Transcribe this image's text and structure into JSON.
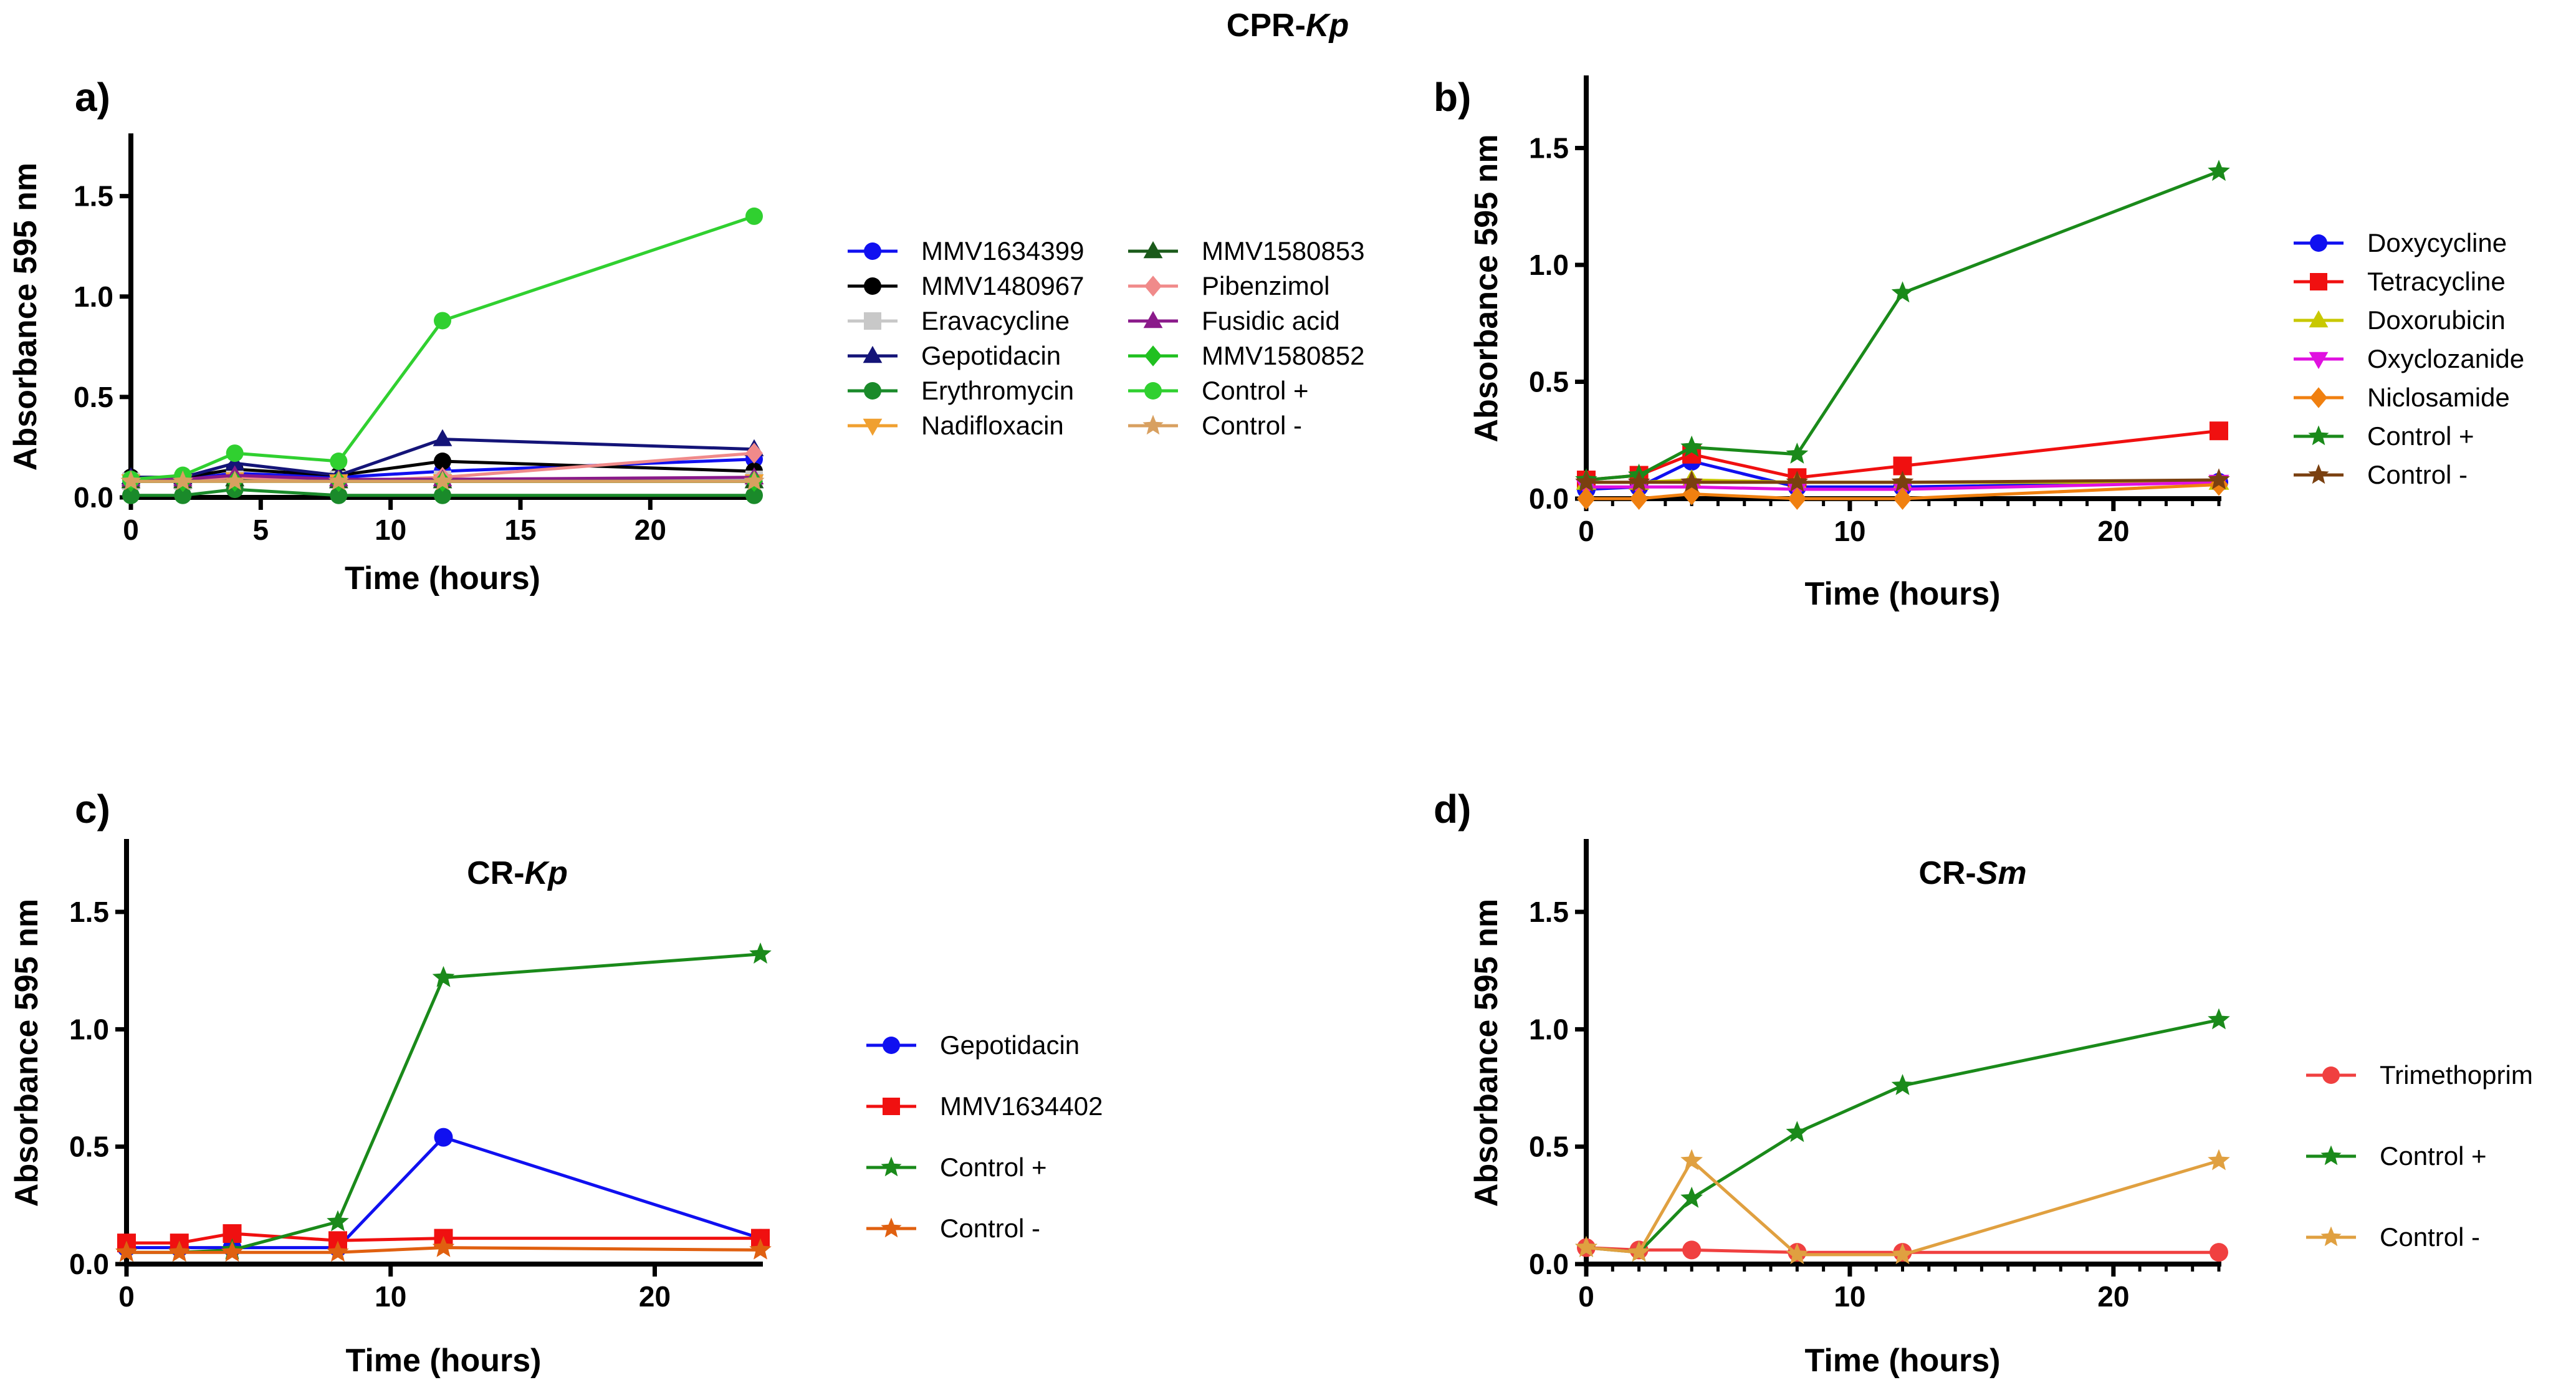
{
  "figure_title": "CPR-Kp",
  "figure_title_parts": {
    "prefix": "CPR-",
    "italic": "Kp"
  },
  "chart_data": [
    {
      "id": "a",
      "type": "line",
      "panel_label": "a)",
      "title": "",
      "xlabel": "Time (hours)",
      "ylabel": "Absorbance 595 nm",
      "xlim": [
        0,
        24
      ],
      "ylim": [
        0,
        1.8
      ],
      "xticks": [
        "0",
        "5",
        "10",
        "15",
        "20"
      ],
      "xtick_values": [
        0,
        5,
        10,
        15,
        20
      ],
      "yticks": [
        "0.0",
        "0.5",
        "1.0",
        "1.5"
      ],
      "ytick_values": [
        0,
        0.5,
        1.0,
        1.5
      ],
      "x": [
        0,
        2,
        4,
        8,
        12,
        24
      ],
      "series": [
        {
          "name": "MMV1634399",
          "color": "#1010f0",
          "marker": "circle",
          "values": [
            0.09,
            0.09,
            0.12,
            0.1,
            0.13,
            0.19
          ]
        },
        {
          "name": "MMV1480967",
          "color": "#000000",
          "marker": "circle",
          "values": [
            0.1,
            0.1,
            0.14,
            0.11,
            0.18,
            0.13
          ]
        },
        {
          "name": "Eravacycline",
          "color": "#c8c8c8",
          "marker": "square",
          "values": [
            0.08,
            0.08,
            0.09,
            0.09,
            0.09,
            0.09
          ]
        },
        {
          "name": "Gepotidacin",
          "color": "#141478",
          "marker": "triangle",
          "values": [
            0.1,
            0.1,
            0.17,
            0.11,
            0.29,
            0.24
          ]
        },
        {
          "name": "Erythromycin",
          "color": "#1a8a2a",
          "marker": "circle",
          "values": [
            0.01,
            0.01,
            0.04,
            0.01,
            0.01,
            0.01
          ]
        },
        {
          "name": "Nadifloxacin",
          "color": "#f0a030",
          "marker": "triangle-down",
          "values": [
            0.08,
            0.08,
            0.09,
            0.08,
            0.08,
            0.08
          ]
        },
        {
          "name": "MMV1580853",
          "color": "#1a5a1a",
          "marker": "triangle",
          "values": [
            0.08,
            0.08,
            0.09,
            0.08,
            0.08,
            0.08
          ]
        },
        {
          "name": "Pibenzimol",
          "color": "#f08a8a",
          "marker": "diamond",
          "values": [
            0.08,
            0.08,
            0.1,
            0.08,
            0.1,
            0.22
          ]
        },
        {
          "name": "Fusidic acid",
          "color": "#8a1a8a",
          "marker": "triangle",
          "values": [
            0.09,
            0.09,
            0.11,
            0.09,
            0.09,
            0.1
          ]
        },
        {
          "name": "MMV1580852",
          "color": "#20c020",
          "marker": "diamond",
          "values": [
            0.08,
            0.08,
            0.08,
            0.08,
            0.08,
            0.08
          ]
        },
        {
          "name": "Control +",
          "color": "#30d030",
          "marker": "circle",
          "values": [
            0.09,
            0.11,
            0.22,
            0.18,
            0.88,
            1.4
          ]
        },
        {
          "name": "Control -",
          "color": "#d8a060",
          "marker": "star",
          "values": [
            0.08,
            0.08,
            0.08,
            0.08,
            0.08,
            0.08
          ]
        }
      ],
      "legend": "right"
    },
    {
      "id": "b",
      "type": "line",
      "panel_label": "b)",
      "title": "",
      "xlabel": "Time (hours)",
      "ylabel": "Absorbance 595 nm",
      "xlim": [
        0,
        24
      ],
      "ylim": [
        0,
        1.8
      ],
      "xticks": [
        "0",
        "10",
        "20"
      ],
      "xtick_values": [
        0,
        10,
        20
      ],
      "yticks": [
        "0.0",
        "0.5",
        "1.0",
        "1.5"
      ],
      "ytick_values": [
        0,
        0.5,
        1.0,
        1.5
      ],
      "x": [
        0,
        2,
        4,
        8,
        12,
        24
      ],
      "series": [
        {
          "name": "Doxycycline",
          "color": "#1010f0",
          "marker": "circle",
          "values": [
            0.04,
            0.05,
            0.16,
            0.05,
            0.05,
            0.07
          ]
        },
        {
          "name": "Tetracycline",
          "color": "#f01010",
          "marker": "square",
          "values": [
            0.08,
            0.1,
            0.19,
            0.09,
            0.14,
            0.29
          ]
        },
        {
          "name": "Doxorubicin",
          "color": "#c8c800",
          "marker": "triangle",
          "values": [
            0.07,
            0.07,
            0.08,
            0.07,
            0.07,
            0.07
          ]
        },
        {
          "name": "Oxyclozanide",
          "color": "#e010e0",
          "marker": "triangle-down",
          "values": [
            0.05,
            0.05,
            0.05,
            0.04,
            0.04,
            0.07
          ]
        },
        {
          "name": "Niclosamide",
          "color": "#f08010",
          "marker": "diamond",
          "values": [
            0.0,
            0.0,
            0.02,
            0.0,
            0.0,
            0.06
          ]
        },
        {
          "name": "Control +",
          "color": "#1a8a1a",
          "marker": "star",
          "values": [
            0.08,
            0.1,
            0.22,
            0.19,
            0.88,
            1.4
          ]
        },
        {
          "name": "Control -",
          "color": "#7a4010",
          "marker": "star",
          "values": [
            0.07,
            0.07,
            0.07,
            0.07,
            0.07,
            0.08
          ]
        }
      ],
      "legend": "right"
    },
    {
      "id": "c",
      "type": "line",
      "panel_label": "c)",
      "title": "CR-Kp",
      "title_parts": {
        "prefix": "CR-",
        "italic": "Kp"
      },
      "xlabel": "Time (hours)",
      "ylabel": "Absorbance 595 nm",
      "xlim": [
        0,
        24
      ],
      "ylim": [
        0,
        1.8
      ],
      "xticks": [
        "0",
        "10",
        "20"
      ],
      "xtick_values": [
        0,
        10,
        20
      ],
      "yticks": [
        "0.0",
        "0.5",
        "1.0",
        "1.5"
      ],
      "ytick_values": [
        0,
        0.5,
        1.0,
        1.5
      ],
      "x": [
        0,
        2,
        4,
        8,
        12,
        24
      ],
      "series": [
        {
          "name": "Gepotidacin",
          "color": "#1010f0",
          "marker": "circle",
          "values": [
            0.07,
            0.07,
            0.07,
            0.07,
            0.54,
            0.11
          ]
        },
        {
          "name": "MMV1634402",
          "color": "#f01010",
          "marker": "square",
          "values": [
            0.09,
            0.09,
            0.13,
            0.1,
            0.11,
            0.11
          ]
        },
        {
          "name": "Control +",
          "color": "#1a8a1a",
          "marker": "star",
          "values": [
            0.05,
            0.05,
            0.06,
            0.18,
            1.22,
            1.32
          ]
        },
        {
          "name": "Control -",
          "color": "#e06010",
          "marker": "star",
          "values": [
            0.05,
            0.05,
            0.05,
            0.05,
            0.07,
            0.06
          ]
        }
      ],
      "legend": "right"
    },
    {
      "id": "d",
      "type": "line",
      "panel_label": "d)",
      "title": "CR-Sm",
      "title_parts": {
        "prefix": "CR-",
        "italic": "Sm"
      },
      "xlabel": "Time (hours)",
      "ylabel": "Absorbance 595 nm",
      "xlim": [
        0,
        24
      ],
      "ylim": [
        0,
        1.8
      ],
      "xticks": [
        "0",
        "10",
        "20"
      ],
      "xtick_values": [
        0,
        10,
        20
      ],
      "yticks": [
        "0.0",
        "0.5",
        "1.0",
        "1.5"
      ],
      "ytick_values": [
        0,
        0.5,
        1.0,
        1.5
      ],
      "x": [
        0,
        2,
        4,
        8,
        12,
        24
      ],
      "series": [
        {
          "name": "Trimethoprim",
          "color": "#f04040",
          "marker": "circle",
          "values": [
            0.07,
            0.06,
            0.06,
            0.05,
            0.05,
            0.05
          ]
        },
        {
          "name": "Control +",
          "color": "#1a8a1a",
          "marker": "star",
          "values": [
            0.07,
            0.05,
            0.28,
            0.56,
            0.76,
            1.04
          ]
        },
        {
          "name": "Control -",
          "color": "#e0a040",
          "marker": "star",
          "values": [
            0.07,
            0.05,
            0.44,
            0.04,
            0.04,
            0.44
          ]
        }
      ],
      "legend": "right"
    }
  ]
}
